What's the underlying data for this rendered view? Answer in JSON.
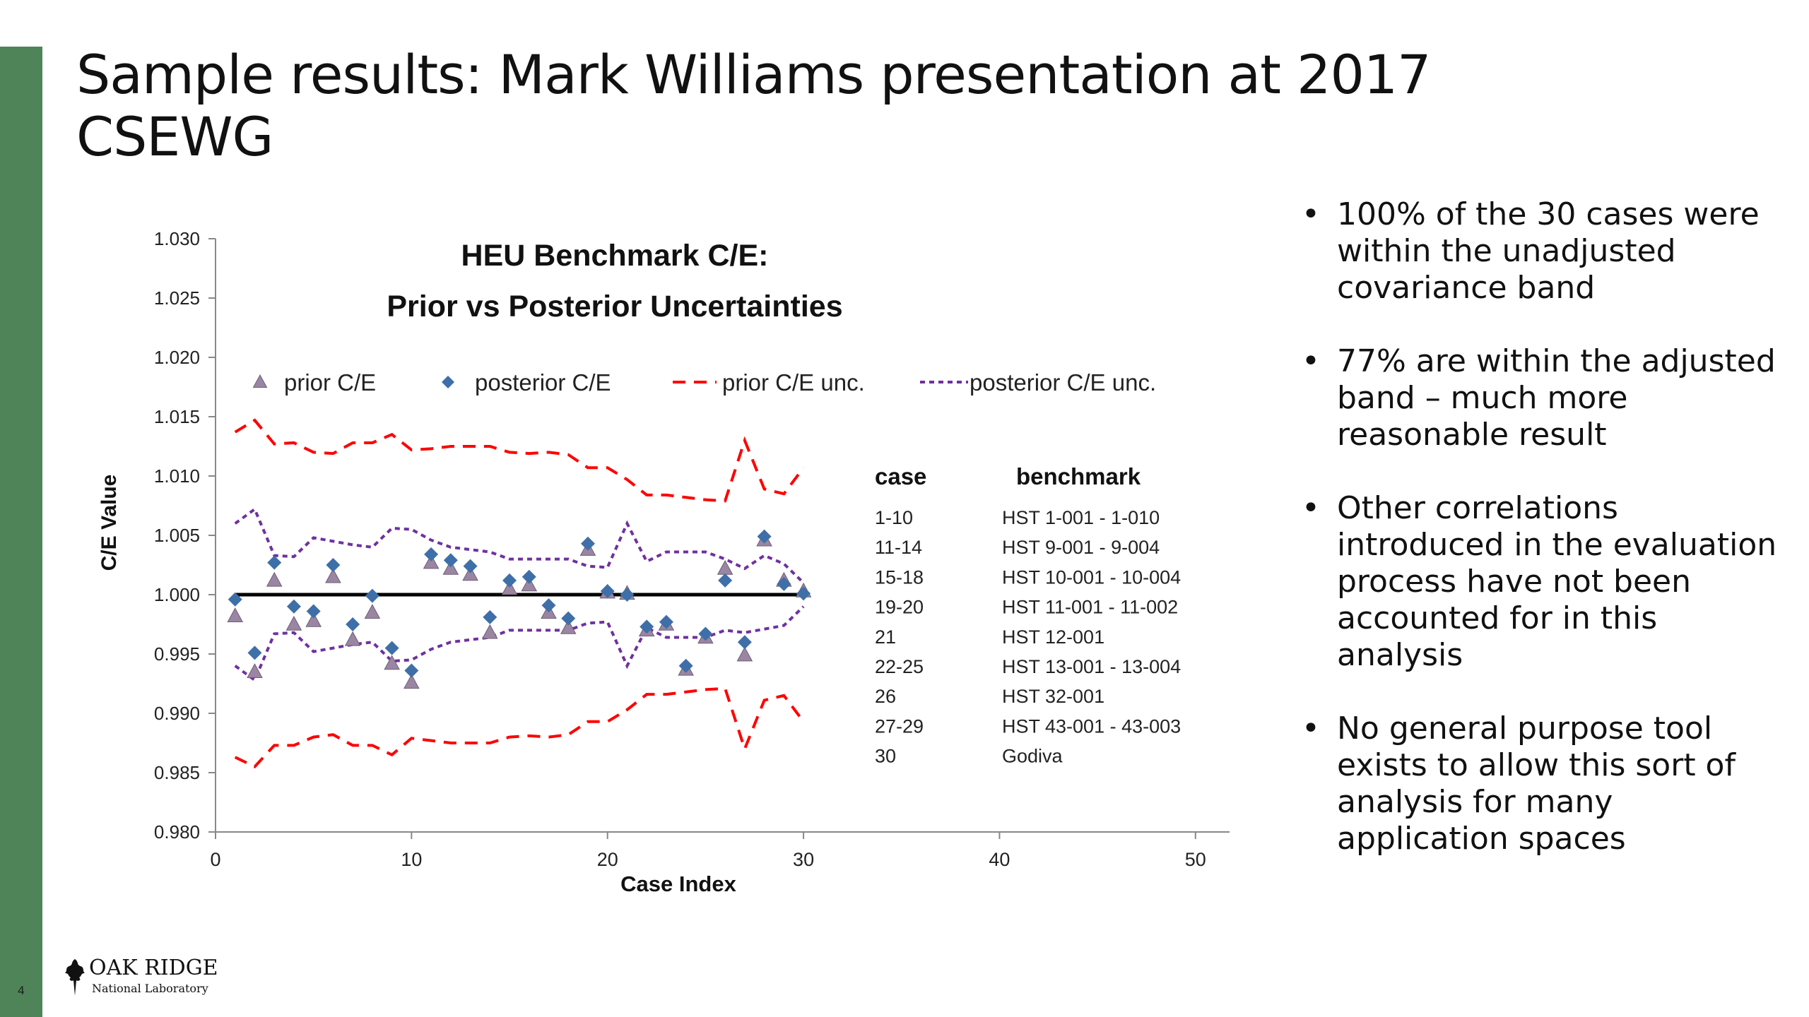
{
  "slide": {
    "title": "Sample results: Mark Williams presentation at 2017 CSEWG",
    "number": "4"
  },
  "bullets": [
    "100% of the 30 cases were within the unadjusted covariance band",
    "77% are within the adjusted band – much more reasonable result",
    "Other correlations introduced in the evaluation process have not been accounted for in this analysis",
    "No general purpose tool exists to allow this sort of analysis for many application spaces"
  ],
  "logo": {
    "line1": "OAK RIDGE",
    "line2": "National Laboratory"
  },
  "benchmark_table": {
    "headers": [
      "case",
      "benchmark"
    ],
    "rows": [
      [
        "1-10",
        "HST 1-001 - 1-010"
      ],
      [
        "11-14",
        "HST 9-001 - 9-004"
      ],
      [
        "15-18",
        "HST 10-001 - 10-004"
      ],
      [
        "19-20",
        "HST 11-001 - 11-002"
      ],
      [
        "21",
        "HST 12-001"
      ],
      [
        "22-25",
        "HST 13-001 - 13-004"
      ],
      [
        "26",
        "HST 32-001"
      ],
      [
        "27-29",
        "HST 43-001 - 43-003"
      ],
      [
        "30",
        "Godiva"
      ]
    ]
  },
  "colors": {
    "green_bar": "#4f8459",
    "prior": "#9a86a3",
    "posterior": "#3f6fa8",
    "prior_unc": "#ff0000",
    "posterior_unc": "#7030a0",
    "reference_line": "#000000"
  },
  "chart_data": {
    "type": "scatter",
    "title": [
      "HEU Benchmark C/E:",
      "Prior vs Posterior Uncertainties"
    ],
    "xlabel": "Case Index",
    "ylabel": "C/E Value",
    "xlim": [
      0,
      53
    ],
    "ylim": [
      0.98,
      1.03
    ],
    "xticks": [
      0,
      10,
      20,
      30,
      40,
      50
    ],
    "yticks": [
      0.98,
      0.985,
      0.99,
      0.995,
      1.0,
      1.005,
      1.01,
      1.015,
      1.02,
      1.025,
      1.03
    ],
    "ytick_labels": [
      "0.980",
      "0.985",
      "0.990",
      "0.995",
      "1.000",
      "1.005",
      "1.010",
      "1.015",
      "1.020",
      "1.025",
      "1.030"
    ],
    "grid": false,
    "legend": "top",
    "x": [
      1,
      2,
      3,
      4,
      5,
      6,
      7,
      8,
      9,
      10,
      11,
      12,
      13,
      14,
      15,
      16,
      17,
      18,
      19,
      20,
      21,
      22,
      23,
      24,
      25,
      26,
      27,
      28,
      29,
      30
    ],
    "reference": {
      "y": 1.0,
      "x_range": [
        1,
        30
      ]
    },
    "series": [
      {
        "name": "prior C/E",
        "style": "triangle",
        "values": [
          0.9982,
          0.9935,
          1.0012,
          0.9975,
          0.9978,
          1.0015,
          0.9962,
          0.9985,
          0.9942,
          0.9926,
          1.0027,
          1.0022,
          1.0017,
          0.9968,
          1.0005,
          1.0008,
          0.9985,
          0.9972,
          1.0038,
          1.0002,
          1.0001,
          0.997,
          0.9975,
          0.9937,
          0.9964,
          1.0022,
          0.9949,
          1.0046,
          1.0012,
          1.0003
        ]
      },
      {
        "name": "posterior C/E",
        "style": "diamond",
        "values": [
          0.9996,
          0.9951,
          1.0027,
          0.999,
          0.9986,
          1.0025,
          0.9975,
          0.9999,
          0.9955,
          0.9936,
          1.0034,
          1.0029,
          1.0024,
          0.9981,
          1.0012,
          1.0015,
          0.9991,
          0.998,
          1.0043,
          1.0003,
          1.0,
          0.9973,
          0.9977,
          0.994,
          0.9967,
          1.0012,
          0.996,
          1.0049,
          1.0009,
          1.0001
        ]
      },
      {
        "name": "prior C/E unc.",
        "style": "dashed",
        "upper": [
          1.0137,
          1.0147,
          1.0127,
          1.0128,
          1.012,
          1.0119,
          1.0128,
          1.0128,
          1.0135,
          1.0122,
          1.0123,
          1.0125,
          1.0125,
          1.0125,
          1.012,
          1.0119,
          1.012,
          1.0118,
          1.0107,
          1.0107,
          1.0097,
          1.0084,
          1.0084,
          1.0082,
          1.008,
          1.0079,
          1.013,
          1.0089,
          1.0085,
          1.0107
        ],
        "lower": [
          0.9863,
          0.9855,
          0.9873,
          0.9873,
          0.988,
          0.9882,
          0.9873,
          0.9873,
          0.9865,
          0.9879,
          0.9877,
          0.9875,
          0.9875,
          0.9875,
          0.988,
          0.9881,
          0.988,
          0.9882,
          0.9893,
          0.9893,
          0.9903,
          0.9916,
          0.9916,
          0.9918,
          0.992,
          0.9921,
          0.987,
          0.9911,
          0.9915,
          0.9893
        ]
      },
      {
        "name": "posterior C/E unc.",
        "style": "dotted",
        "upper": [
          1.006,
          1.0072,
          1.0033,
          1.0032,
          1.0048,
          1.0045,
          1.0042,
          1.004,
          1.0056,
          1.0055,
          1.0046,
          1.004,
          1.0038,
          1.0036,
          1.003,
          1.003,
          1.003,
          1.003,
          1.0024,
          1.0023,
          1.006,
          1.0028,
          1.0036,
          1.0036,
          1.0036,
          1.003,
          1.0022,
          1.0033,
          1.0026,
          1.001
        ],
        "lower": [
          0.994,
          0.9928,
          0.9967,
          0.9968,
          0.9952,
          0.9955,
          0.9958,
          0.996,
          0.9944,
          0.9945,
          0.9954,
          0.996,
          0.9962,
          0.9964,
          0.997,
          0.997,
          0.997,
          0.997,
          0.9976,
          0.9977,
          0.994,
          0.9972,
          0.9964,
          0.9964,
          0.9964,
          0.997,
          0.9968,
          0.9971,
          0.9974,
          0.999
        ]
      }
    ]
  }
}
